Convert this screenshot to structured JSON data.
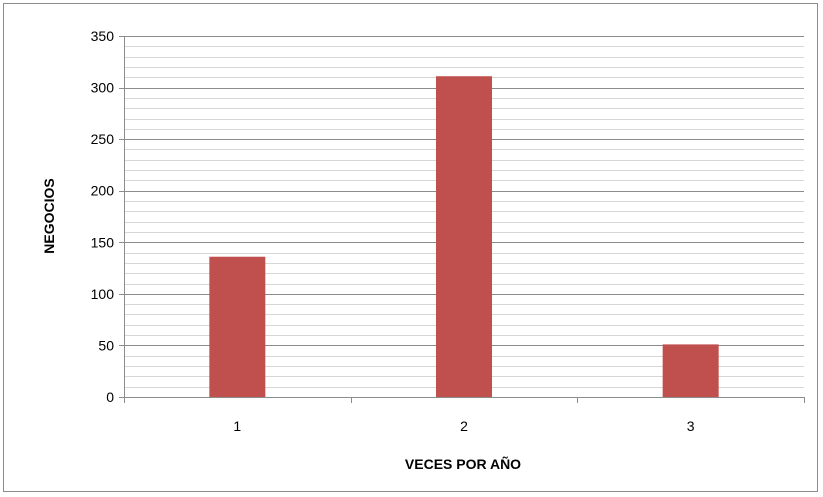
{
  "chart_data": {
    "type": "bar",
    "categories": [
      "1",
      "2",
      "3"
    ],
    "values": [
      136,
      311,
      51
    ],
    "xlabel": "VECES POR AÑO",
    "ylabel": "NEGOCIOS",
    "ylim": [
      0,
      350
    ],
    "yticks": [
      "0",
      "50",
      "100",
      "150",
      "200",
      "250",
      "300",
      "350"
    ],
    "grid": true,
    "legend": "none",
    "colors": {
      "bar": "#c0504d",
      "gridline": "#8c8c8c",
      "axis": "#8c8c8c"
    }
  }
}
